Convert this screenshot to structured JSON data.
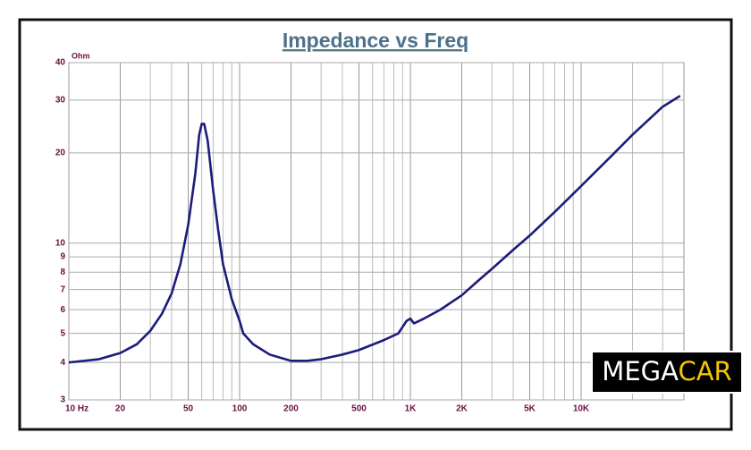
{
  "chart_data": {
    "type": "line",
    "title": "Impedance vs Freq",
    "ylabel": "Ohm",
    "log_x": true,
    "log_y": true,
    "grid": true,
    "x": [
      10,
      15,
      20,
      25,
      30,
      35,
      40,
      45,
      50,
      55,
      58,
      60,
      62,
      65,
      70,
      75,
      80,
      90,
      100,
      105,
      120,
      150,
      200,
      250,
      300,
      400,
      500,
      700,
      850,
      950,
      1000,
      1050,
      1200,
      1500,
      2000,
      2500,
      3000,
      4000,
      5000,
      7000,
      10000,
      15000,
      20000,
      30000,
      38000
    ],
    "series": [
      {
        "name": "Impedance",
        "color": "#1c1c7a",
        "values": [
          4.0,
          4.1,
          4.3,
          4.6,
          5.1,
          5.8,
          6.8,
          8.5,
          11.5,
          17,
          23,
          25,
          25,
          22,
          15,
          11,
          8.5,
          6.5,
          5.5,
          5.0,
          4.6,
          4.25,
          4.05,
          4.05,
          4.1,
          4.25,
          4.4,
          4.75,
          5.0,
          5.5,
          5.6,
          5.4,
          5.6,
          6.0,
          6.7,
          7.5,
          8.2,
          9.5,
          10.6,
          12.7,
          15.5,
          19.5,
          23,
          28.5,
          31
        ]
      }
    ],
    "xlim": [
      10,
      40000
    ],
    "xticks": [
      {
        "value": 10,
        "label": "10 Hz"
      },
      20,
      50,
      100,
      200,
      500,
      {
        "value": 1000,
        "label": "1K"
      },
      {
        "value": 2000,
        "label": "2K"
      },
      {
        "value": 5000,
        "label": "5K"
      },
      {
        "value": 10000,
        "label": "10K"
      }
    ],
    "ylim": [
      3,
      40
    ],
    "yticks": [
      3,
      4,
      5,
      6,
      7,
      8,
      9,
      10,
      20,
      30,
      40
    ]
  },
  "logo": {
    "first": "MEGA",
    "second": "CAR"
  }
}
